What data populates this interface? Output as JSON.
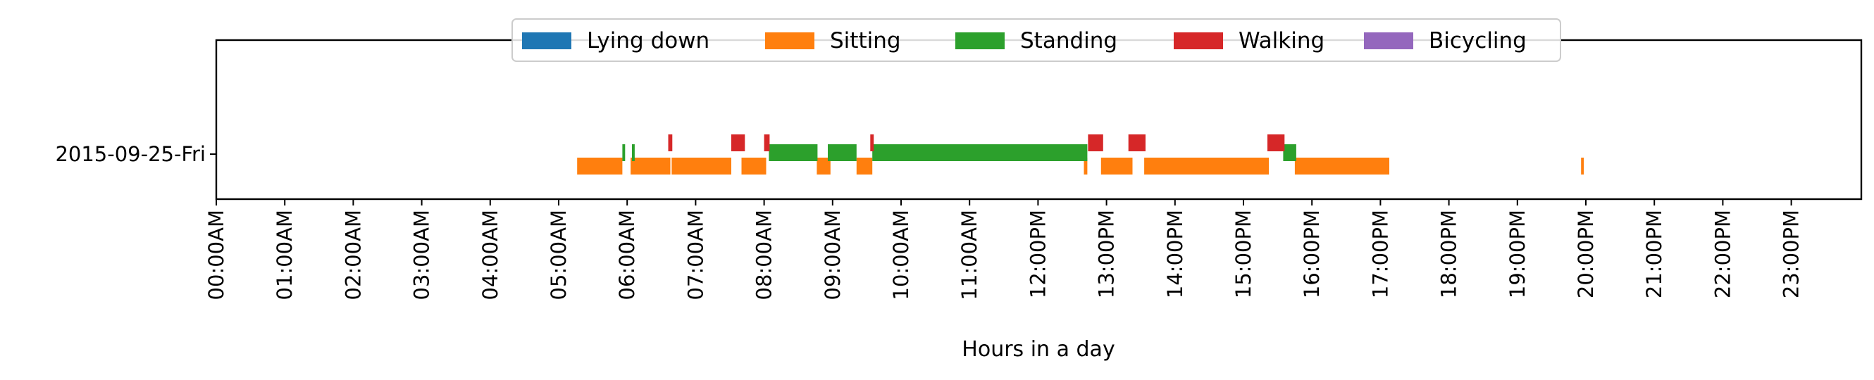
{
  "chart_data": {
    "type": "timeline",
    "xlabel": "Hours in a day",
    "ylabel": "",
    "xlim": [
      0,
      24
    ],
    "x_ticks": [
      "00:00AM",
      "01:00AM",
      "02:00AM",
      "03:00AM",
      "04:00AM",
      "05:00AM",
      "06:00AM",
      "07:00AM",
      "08:00AM",
      "09:00AM",
      "10:00AM",
      "11:00AM",
      "12:00PM",
      "13:00PM",
      "14:00PM",
      "15:00PM",
      "16:00PM",
      "17:00PM",
      "18:00PM",
      "19:00PM",
      "20:00PM",
      "21:00PM",
      "22:00PM",
      "23:00PM"
    ],
    "categories": [
      "2015-09-25-Fri"
    ],
    "legend_position": "top-center",
    "grid": false,
    "series": [
      {
        "name": "Lying down",
        "color": "#1f77b4",
        "intervals": []
      },
      {
        "name": "Sitting",
        "color": "#ff7f0e",
        "intervals": [
          [
            5.27,
            5.93
          ],
          [
            6.05,
            6.63
          ],
          [
            6.65,
            7.52
          ],
          [
            7.67,
            8.03
          ],
          [
            8.77,
            8.97
          ],
          [
            9.35,
            9.58
          ],
          [
            12.67,
            12.72
          ],
          [
            12.92,
            13.38
          ],
          [
            13.55,
            15.37
          ],
          [
            15.75,
            17.13
          ],
          [
            19.93,
            19.97
          ]
        ]
      },
      {
        "name": "Standing",
        "color": "#2ca02c",
        "intervals": [
          [
            5.93,
            5.97
          ],
          [
            6.07,
            6.11
          ],
          [
            8.07,
            8.78
          ],
          [
            8.93,
            9.35
          ],
          [
            9.58,
            12.72
          ],
          [
            15.58,
            15.77
          ]
        ]
      },
      {
        "name": "Walking",
        "color": "#d62728",
        "intervals": [
          [
            6.6,
            6.66
          ],
          [
            7.52,
            7.72
          ],
          [
            8.0,
            8.08
          ],
          [
            9.55,
            9.6
          ],
          [
            12.73,
            12.95
          ],
          [
            13.32,
            13.57
          ],
          [
            15.35,
            15.6
          ]
        ]
      },
      {
        "name": "Bicycling",
        "color": "#9467bd",
        "intervals": []
      }
    ]
  }
}
